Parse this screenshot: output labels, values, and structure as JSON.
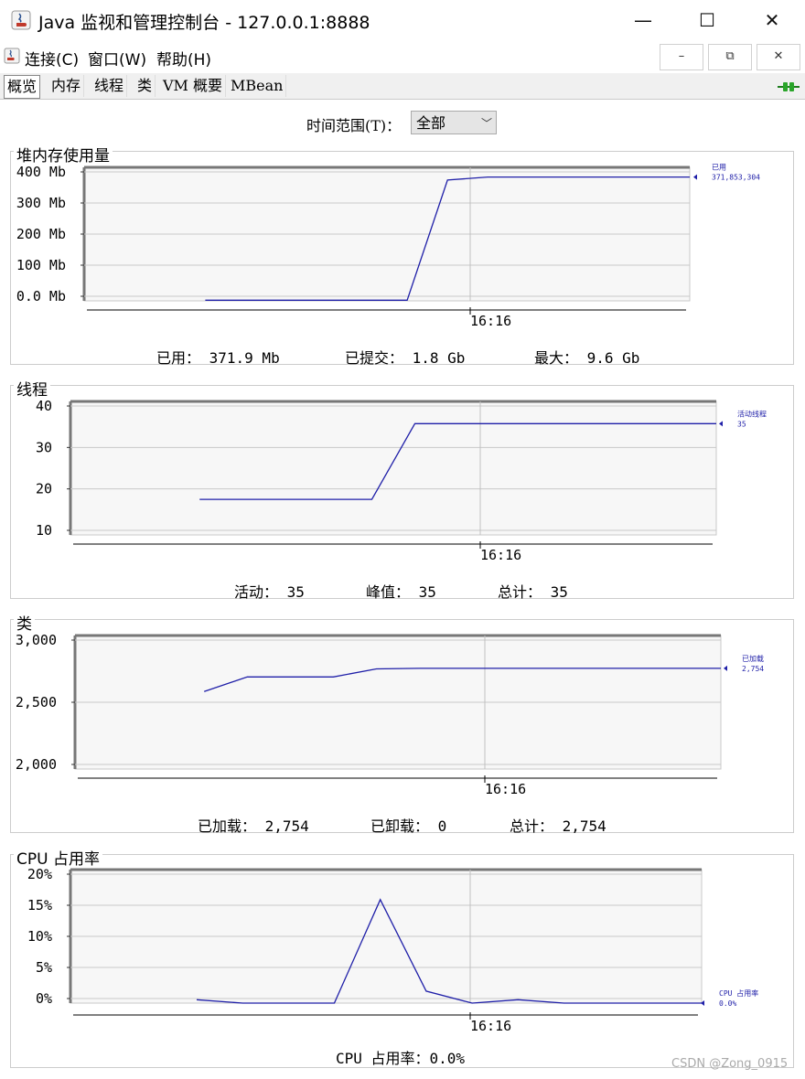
{
  "window": {
    "title": "Java 监视和管理控制台 - 127.0.0.1:8888",
    "minimize_glyph": "—",
    "maximize_glyph": "☐",
    "close_glyph": "✕"
  },
  "menu": {
    "items": [
      "连接(C)",
      "窗口(W)",
      "帮助(H)"
    ],
    "mdi_minimize": "–",
    "mdi_restore": "⧉",
    "mdi_close": "✕"
  },
  "tabs": [
    "概览",
    "内存",
    "线程",
    "类",
    "VM 概要",
    "MBean"
  ],
  "active_tab": "概览",
  "time_range": {
    "label": "时间范围(T)：",
    "value": "全部"
  },
  "panels": {
    "heap": {
      "title": "堆内存使用量",
      "stats": [
        "已用：  371.9  Mb",
        "已提交：  1.8  Gb",
        "最大：  9.6  Gb"
      ]
    },
    "threads": {
      "title": "线程",
      "stats": [
        "活动：  35",
        "峰值：  35",
        "总计：  35"
      ]
    },
    "classes": {
      "title": "类",
      "stats": [
        "已加载：  2,754",
        "已卸载：  0",
        "总计：  2,754"
      ]
    },
    "cpu": {
      "title": "CPU 占用率",
      "stats": [
        "CPU 占用率：0.0%"
      ]
    }
  },
  "chart_data": [
    {
      "type": "line",
      "title": "堆内存使用量",
      "ytick_labels": [
        "400 Mb",
        "300 Mb",
        "200 Mb",
        "100 Mb",
        "0.0 Mb"
      ],
      "xtick_labels": [
        "16:16"
      ],
      "ylim": [
        0,
        400
      ],
      "series": [
        {
          "name": "已用",
          "value_label": "371,853,304",
          "values": [
            2,
            2,
            2,
            2,
            2,
            2,
            362,
            371,
            371,
            371,
            371,
            371,
            371
          ]
        }
      ],
      "color": "#1f1fa8"
    },
    {
      "type": "line",
      "title": "线程",
      "ytick_labels": [
        "40",
        "30",
        "20",
        "10"
      ],
      "xtick_labels": [
        "16:16"
      ],
      "ylim": [
        10,
        40
      ],
      "series": [
        {
          "name": "活动线程",
          "value_label": "35",
          "values": [
            18,
            18,
            18,
            18,
            18,
            35,
            35,
            35,
            35,
            35,
            35,
            35,
            35
          ]
        }
      ],
      "color": "#1f1fa8"
    },
    {
      "type": "line",
      "title": "类",
      "ytick_labels": [
        "3,000",
        "2,500",
        "2,000"
      ],
      "xtick_labels": [
        "16:16"
      ],
      "ylim": [
        2000,
        3000
      ],
      "series": [
        {
          "name": "已加载",
          "value_label": "2,754",
          "values": [
            2580,
            2690,
            2690,
            2690,
            2750,
            2754,
            2754,
            2754,
            2754,
            2754,
            2754,
            2754,
            2754
          ]
        }
      ],
      "color": "#1f1fa8"
    },
    {
      "type": "line",
      "title": "CPU 占用率",
      "ytick_labels": [
        "20%",
        "15%",
        "10%",
        "5%",
        "0%"
      ],
      "xtick_labels": [
        "16:16"
      ],
      "ylim": [
        0,
        20
      ],
      "series": [
        {
          "name": "CPU 占用率",
          "value_label": "0.0%",
          "values": [
            0.5,
            0,
            0,
            0,
            15.5,
            1.8,
            0,
            0.5,
            0,
            0,
            0,
            0
          ]
        }
      ],
      "color": "#1f1fa8"
    }
  ],
  "watermark": "CSDN @Zong_0915"
}
